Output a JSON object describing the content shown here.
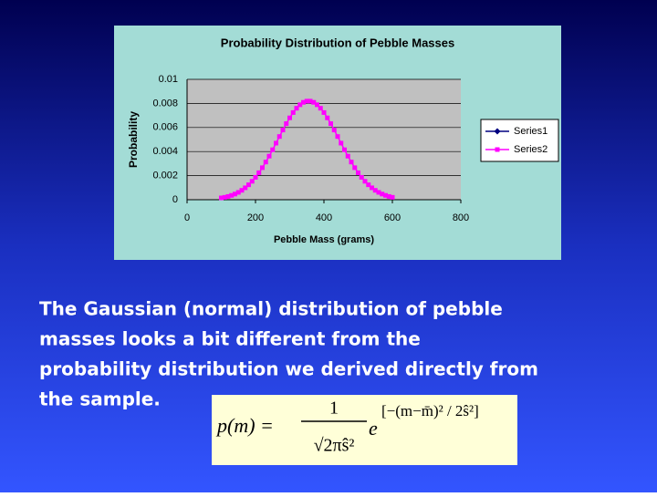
{
  "chart_data": {
    "type": "line",
    "title": "Probability Distribution of Pebble Masses",
    "x_label": "Pebble Mass (grams)",
    "y_label": "Probability",
    "x": [
      100,
      110,
      120,
      130,
      140,
      150,
      160,
      170,
      180,
      190,
      200,
      210,
      220,
      230,
      240,
      250,
      260,
      270,
      280,
      290,
      300,
      310,
      320,
      330,
      340,
      350,
      360,
      370,
      380,
      390,
      400,
      410,
      420,
      430,
      440,
      450,
      460,
      470,
      480,
      490,
      500,
      510,
      520,
      530,
      540,
      550,
      560,
      570,
      580,
      590,
      600
    ],
    "series": [
      {
        "name": "Series1",
        "color": "#000080",
        "marker": "diamond",
        "values": [
          null,
          null,
          null,
          null,
          null,
          null,
          null,
          null,
          null,
          null,
          null,
          null,
          null,
          null,
          null,
          null,
          null,
          null,
          null,
          null,
          null,
          null,
          null,
          null,
          null,
          null,
          null,
          null,
          null,
          null,
          null,
          null,
          null,
          null,
          null,
          null,
          null,
          null,
          null,
          null,
          null,
          null,
          null,
          null,
          null,
          null,
          null,
          null,
          null,
          null,
          null
        ]
      },
      {
        "name": "Series2",
        "color": "#ff00ff",
        "marker": "square",
        "values": [
          0.00015,
          0.0002,
          0.00027,
          0.00036,
          0.00047,
          0.00061,
          0.00078,
          0.00099,
          0.00124,
          0.00153,
          0.00186,
          0.00224,
          0.00266,
          0.00313,
          0.00362,
          0.00415,
          0.0047,
          0.00525,
          0.00579,
          0.00632,
          0.0068,
          0.00724,
          0.0076,
          0.00789,
          0.00809,
          0.00819,
          0.00819,
          0.00809,
          0.00789,
          0.0076,
          0.00724,
          0.0068,
          0.00632,
          0.00579,
          0.00525,
          0.0047,
          0.00415,
          0.00362,
          0.00313,
          0.00266,
          0.00224,
          0.00186,
          0.00153,
          0.00124,
          0.00099,
          0.00078,
          0.00061,
          0.00047,
          0.00036,
          0.00027,
          0.0002
        ]
      }
    ],
    "xlim": [
      0,
      800
    ],
    "xticks": [
      0,
      200,
      400,
      600,
      800
    ],
    "ylim": [
      0,
      0.01
    ],
    "yticks": [
      0,
      0.002,
      0.004,
      0.006,
      0.008,
      0.01
    ],
    "grid": true,
    "legend": "right"
  },
  "caption": {
    "lines": [
      "The Gaussian (normal) distribution of pebble",
      "masses looks a bit different from the",
      "probability distribution we derived directly from",
      "the sample."
    ]
  },
  "formula": {
    "lhs": "p(m) =",
    "numerator": "1",
    "denominator": "√2πŝ²",
    "base": "e",
    "exponent": "[−(m−m̄)² / 2ŝ²]"
  }
}
